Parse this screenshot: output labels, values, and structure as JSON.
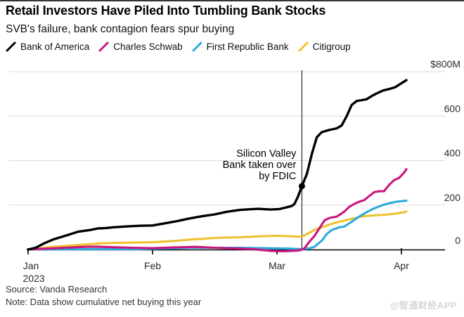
{
  "header": {
    "title": "Retail Investors Have Piled Into Tumbling Bank Stocks",
    "subtitle": "SVB's failure, bank contagion fears spur buying"
  },
  "legend": {
    "items": [
      {
        "label": "Bank of America",
        "color": "#000000"
      },
      {
        "label": "Charles Schwab",
        "color": "#c9157e"
      },
      {
        "label": "First Republic Bank",
        "color": "#2fa8dc"
      },
      {
        "label": "Citigroup",
        "color": "#eec22f"
      }
    ]
  },
  "chart_data": {
    "type": "line",
    "title": "Retail Investors Have Piled Into Tumbling Bank Stocks",
    "subtitle": "SVB's failure, bank contagion fears spur buying",
    "unit": "USD millions, cumulative net buying this year",
    "x_axis": {
      "tick_labels": [
        "Jan",
        "Feb",
        "Mar",
        "Apr"
      ],
      "year_label": "2023",
      "note": "x values in series points are months since Jan 1 2023",
      "range_months": [
        0,
        3.04
      ]
    },
    "y_axis": {
      "side": "right",
      "tick_labels": [
        "$800M",
        "600",
        "400",
        "200",
        "0"
      ],
      "tick_values": [
        800,
        600,
        400,
        200,
        0
      ],
      "ylim": [
        0,
        800
      ],
      "grid": true
    },
    "annotation": {
      "lines": [
        "Silicon Valley",
        "Bank taken over",
        "by FDIC"
      ],
      "x_month": 2.2,
      "marker_value": 285
    },
    "series": [
      {
        "name": "Bank of America",
        "color": "#000000",
        "points": [
          [
            0,
            0
          ],
          [
            0.06,
            8
          ],
          [
            0.13,
            28
          ],
          [
            0.2,
            45
          ],
          [
            0.3,
            62
          ],
          [
            0.4,
            80
          ],
          [
            0.5,
            88
          ],
          [
            0.56,
            95
          ],
          [
            0.62,
            96
          ],
          [
            0.68,
            100
          ],
          [
            0.8,
            104
          ],
          [
            0.9,
            107
          ],
          [
            1.0,
            108
          ],
          [
            1.1,
            118
          ],
          [
            1.2,
            128
          ],
          [
            1.3,
            140
          ],
          [
            1.4,
            150
          ],
          [
            1.5,
            158
          ],
          [
            1.6,
            170
          ],
          [
            1.7,
            178
          ],
          [
            1.75,
            180
          ],
          [
            1.85,
            183
          ],
          [
            1.95,
            180
          ],
          [
            2.02,
            182
          ],
          [
            2.08,
            190
          ],
          [
            2.12,
            196
          ],
          [
            2.14,
            205
          ],
          [
            2.17,
            240
          ],
          [
            2.2,
            285
          ],
          [
            2.24,
            340
          ],
          [
            2.28,
            430
          ],
          [
            2.32,
            505
          ],
          [
            2.36,
            528
          ],
          [
            2.42,
            538
          ],
          [
            2.48,
            545
          ],
          [
            2.52,
            558
          ],
          [
            2.56,
            600
          ],
          [
            2.6,
            650
          ],
          [
            2.64,
            668
          ],
          [
            2.68,
            672
          ],
          [
            2.72,
            676
          ],
          [
            2.76,
            690
          ],
          [
            2.8,
            702
          ],
          [
            2.85,
            715
          ],
          [
            2.9,
            722
          ],
          [
            2.95,
            730
          ],
          [
            3.0,
            748
          ],
          [
            3.04,
            762
          ]
        ]
      },
      {
        "name": "Charles Schwab",
        "color": "#c9157e",
        "points": [
          [
            0,
            0
          ],
          [
            0.15,
            4
          ],
          [
            0.3,
            8
          ],
          [
            0.45,
            12
          ],
          [
            0.55,
            13
          ],
          [
            0.7,
            10
          ],
          [
            0.85,
            8
          ],
          [
            1.0,
            6
          ],
          [
            1.2,
            10
          ],
          [
            1.35,
            12
          ],
          [
            1.5,
            8
          ],
          [
            1.65,
            5
          ],
          [
            1.8,
            2
          ],
          [
            1.95,
            -6
          ],
          [
            2.05,
            -8
          ],
          [
            2.12,
            -6
          ],
          [
            2.18,
            -4
          ],
          [
            2.22,
            5
          ],
          [
            2.26,
            35
          ],
          [
            2.3,
            60
          ],
          [
            2.34,
            95
          ],
          [
            2.38,
            130
          ],
          [
            2.42,
            142
          ],
          [
            2.48,
            148
          ],
          [
            2.54,
            170
          ],
          [
            2.58,
            192
          ],
          [
            2.62,
            205
          ],
          [
            2.66,
            215
          ],
          [
            2.7,
            222
          ],
          [
            2.74,
            240
          ],
          [
            2.78,
            258
          ],
          [
            2.82,
            262
          ],
          [
            2.86,
            262
          ],
          [
            2.9,
            290
          ],
          [
            2.94,
            312
          ],
          [
            2.98,
            322
          ],
          [
            3.02,
            345
          ],
          [
            3.04,
            362
          ]
        ]
      },
      {
        "name": "First Republic Bank",
        "color": "#2fa8dc",
        "points": [
          [
            0,
            0
          ],
          [
            0.3,
            1
          ],
          [
            0.6,
            2
          ],
          [
            0.9,
            2
          ],
          [
            1.1,
            5
          ],
          [
            1.3,
            8
          ],
          [
            1.5,
            8
          ],
          [
            1.7,
            8
          ],
          [
            1.9,
            6
          ],
          [
            2.1,
            4
          ],
          [
            2.2,
            2
          ],
          [
            2.26,
            5
          ],
          [
            2.3,
            12
          ],
          [
            2.36,
            40
          ],
          [
            2.4,
            70
          ],
          [
            2.44,
            88
          ],
          [
            2.5,
            100
          ],
          [
            2.54,
            103
          ],
          [
            2.6,
            125
          ],
          [
            2.66,
            148
          ],
          [
            2.72,
            168
          ],
          [
            2.78,
            185
          ],
          [
            2.84,
            198
          ],
          [
            2.9,
            208
          ],
          [
            2.96,
            215
          ],
          [
            3.04,
            220
          ]
        ]
      },
      {
        "name": "Citigroup",
        "color": "#eec22f",
        "points": [
          [
            0,
            0
          ],
          [
            0.1,
            6
          ],
          [
            0.2,
            12
          ],
          [
            0.3,
            16
          ],
          [
            0.4,
            20
          ],
          [
            0.5,
            24
          ],
          [
            0.6,
            28
          ],
          [
            0.7,
            30
          ],
          [
            0.8,
            31
          ],
          [
            0.9,
            32
          ],
          [
            1.0,
            33
          ],
          [
            1.1,
            36
          ],
          [
            1.2,
            40
          ],
          [
            1.3,
            45
          ],
          [
            1.4,
            48
          ],
          [
            1.5,
            52
          ],
          [
            1.6,
            54
          ],
          [
            1.7,
            55
          ],
          [
            1.8,
            58
          ],
          [
            1.9,
            60
          ],
          [
            2.0,
            62
          ],
          [
            2.1,
            60
          ],
          [
            2.16,
            58
          ],
          [
            2.2,
            58
          ],
          [
            2.26,
            75
          ],
          [
            2.3,
            88
          ],
          [
            2.36,
            100
          ],
          [
            2.42,
            112
          ],
          [
            2.48,
            122
          ],
          [
            2.54,
            130
          ],
          [
            2.6,
            138
          ],
          [
            2.66,
            146
          ],
          [
            2.7,
            150
          ],
          [
            2.76,
            153
          ],
          [
            2.82,
            155
          ],
          [
            2.9,
            158
          ],
          [
            2.96,
            162
          ],
          [
            3.04,
            170
          ]
        ]
      }
    ]
  },
  "footer": {
    "source": "Source: Vanda Research",
    "note": "Note: Data show cumulative net buying this year",
    "watermark": "@智通财经APP"
  }
}
